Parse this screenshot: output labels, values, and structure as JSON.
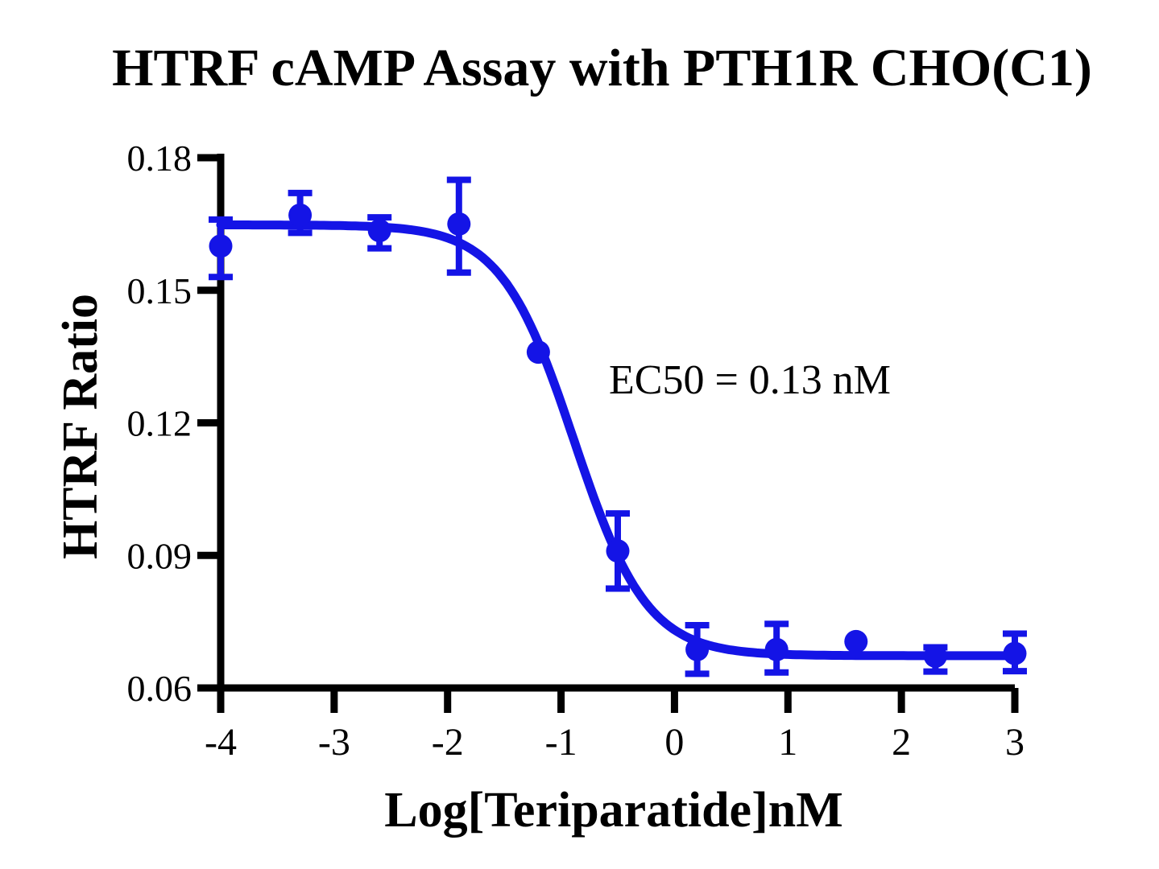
{
  "chart_data": {
    "type": "scatter",
    "subtype": "dose-response-curve-with-error-bars",
    "title": "HTRF cAMP Assay with PTH1R CHO(C1)",
    "xlabel": "Log[Teriparatide]nM",
    "ylabel": "HTRF Ratio",
    "annotation": "EC50 = 0.13 nM",
    "xlim": [
      -4,
      3
    ],
    "ylim": [
      0.06,
      0.18
    ],
    "grid": false,
    "legend_position": "none",
    "x_ticks": [
      {
        "v": -4,
        "label": "-4"
      },
      {
        "v": -3,
        "label": "-3"
      },
      {
        "v": -2,
        "label": "-2"
      },
      {
        "v": -1,
        "label": "-1"
      },
      {
        "v": 0,
        "label": "0"
      },
      {
        "v": 1,
        "label": "1"
      },
      {
        "v": 2,
        "label": "2"
      },
      {
        "v": 3,
        "label": "3"
      }
    ],
    "y_ticks": [
      {
        "v": 0.06,
        "label": "0.06"
      },
      {
        "v": 0.09,
        "label": "0.09"
      },
      {
        "v": 0.12,
        "label": "0.12"
      },
      {
        "v": 0.15,
        "label": "0.15"
      },
      {
        "v": 0.18,
        "label": "0.18"
      }
    ],
    "series": [
      {
        "name": "Teriparatide",
        "marker": "circle",
        "points": [
          {
            "x": -4.0,
            "y": 0.16,
            "err_plus": 0.006,
            "err_minus": 0.007
          },
          {
            "x": -3.3,
            "y": 0.167,
            "err_plus": 0.005,
            "err_minus": 0.004
          },
          {
            "x": -2.6,
            "y": 0.1635,
            "err_plus": 0.003,
            "err_minus": 0.004
          },
          {
            "x": -1.9,
            "y": 0.165,
            "err_plus": 0.01,
            "err_minus": 0.011
          },
          {
            "x": -1.2,
            "y": 0.136,
            "err_plus": 0,
            "err_minus": 0
          },
          {
            "x": -0.5,
            "y": 0.091,
            "err_plus": 0.0085,
            "err_minus": 0.0085
          },
          {
            "x": 0.2,
            "y": 0.0687,
            "err_plus": 0.0055,
            "err_minus": 0.0055
          },
          {
            "x": 0.9,
            "y": 0.0687,
            "err_plus": 0.0058,
            "err_minus": 0.0052
          },
          {
            "x": 1.6,
            "y": 0.0705,
            "err_plus": 0,
            "err_minus": 0
          },
          {
            "x": 2.3,
            "y": 0.0672,
            "err_plus": 0.002,
            "err_minus": 0.0035
          },
          {
            "x": 3.0,
            "y": 0.0678,
            "err_plus": 0.0045,
            "err_minus": 0.004
          }
        ],
        "fit_curve": {
          "model": "four-parameter-logistic",
          "top": 0.1648,
          "bottom": 0.0673,
          "log_ec50": -0.886,
          "hill_slope": 1.35,
          "ec50_nM": 0.13
        }
      }
    ]
  },
  "colors": {
    "curve": "#1414e6",
    "axis": "#000000",
    "text": "#000000",
    "background": "#ffffff"
  }
}
